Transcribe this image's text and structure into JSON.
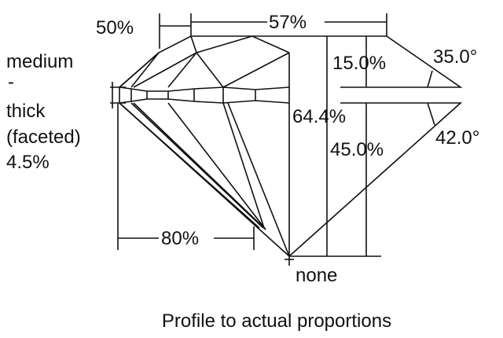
{
  "labels": {
    "star_length": "50%",
    "table": "57%",
    "girdle_line1": "medium",
    "girdle_line2": "-",
    "girdle_line3": "thick",
    "girdle_line4": "(faceted)",
    "girdle_line5": "4.5%",
    "crown_height": "15.0%",
    "crown_angle": "35.0°",
    "total_depth": "64.4%",
    "pavilion_angle": "42.0°",
    "pavilion_depth": "45.0%",
    "lower_half": "80%",
    "culet": "none"
  },
  "caption": "Profile to actual proportions"
}
